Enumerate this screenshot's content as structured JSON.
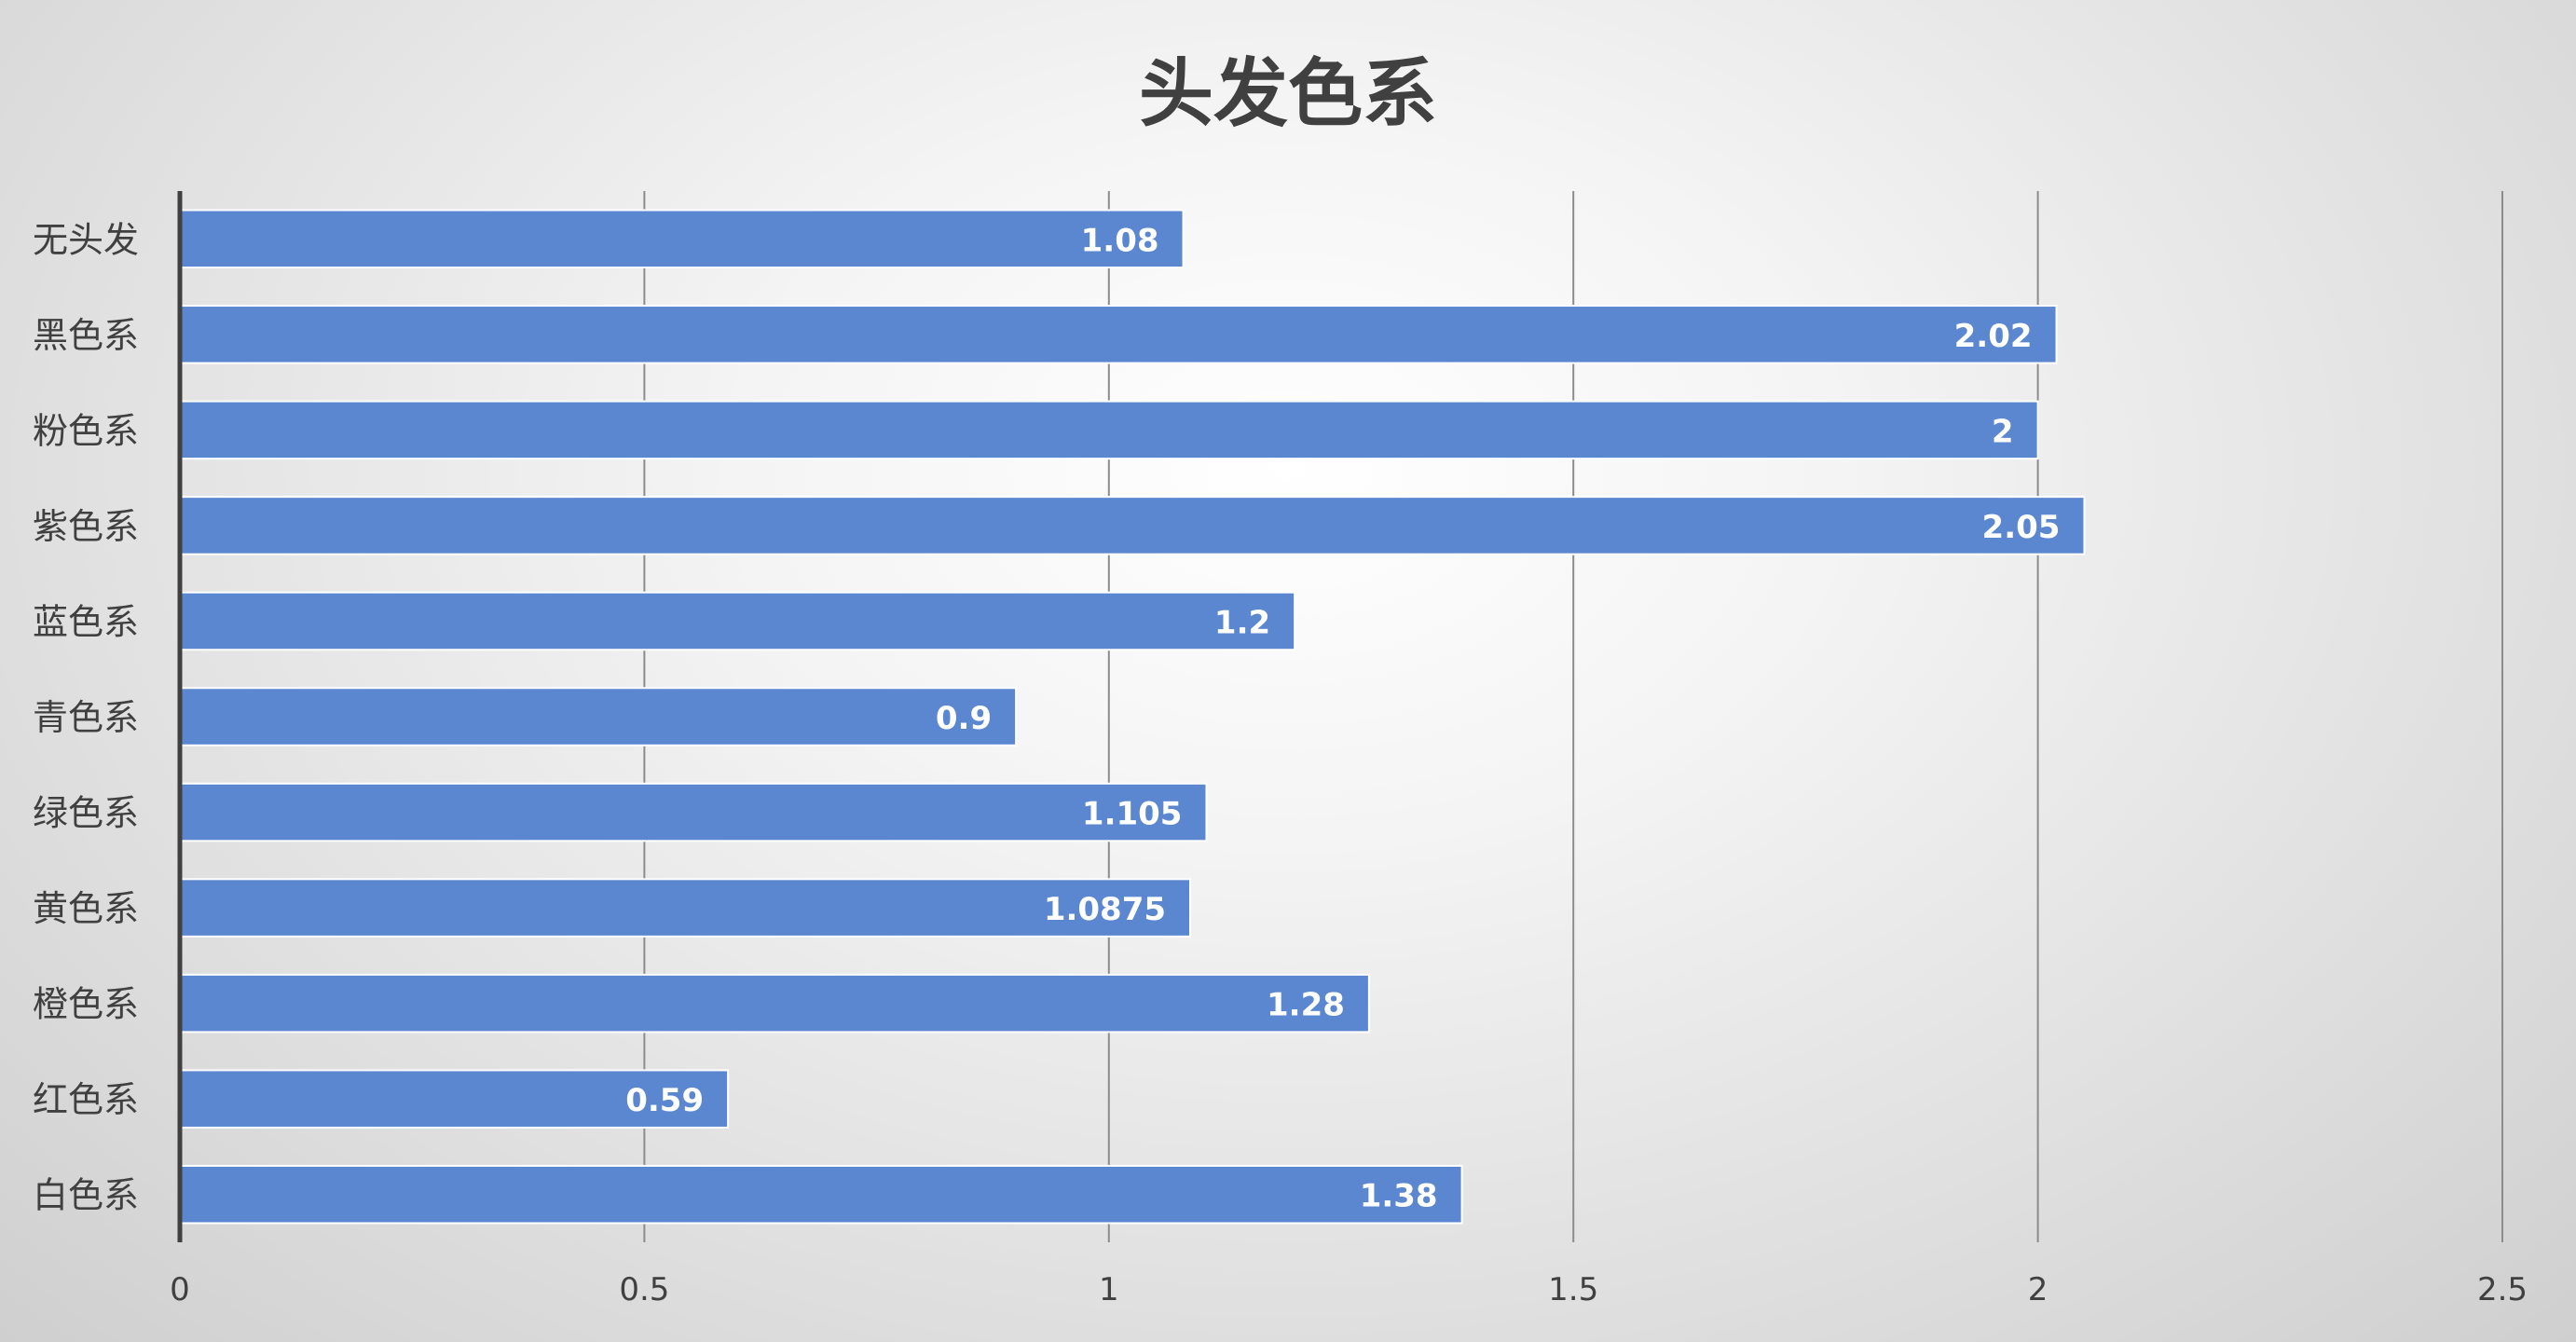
{
  "chart_data": {
    "type": "bar",
    "orientation": "horizontal",
    "title": "头发色系",
    "categories": [
      "无头发",
      "黑色系",
      "粉色系",
      "紫色系",
      "蓝色系",
      "青色系",
      "绿色系",
      "黄色系",
      "橙色系",
      "红色系",
      "白色系"
    ],
    "values": [
      1.08,
      2.02,
      2,
      2.05,
      1.2,
      0.9,
      1.105,
      1.0875,
      1.28,
      0.59,
      1.38
    ],
    "data_labels": [
      "1.08",
      "2.02",
      "2",
      "2.05",
      "1.2",
      "0.9",
      "1.105",
      "1.0875",
      "1.28",
      "0.59",
      "1.38"
    ],
    "x_ticks": [
      "0",
      "0.5",
      "1",
      "1.5",
      "2",
      "2.5"
    ],
    "xlim": [
      0,
      2.5
    ],
    "xlabel": "",
    "ylabel": "",
    "grid": true,
    "legend": "none",
    "colors": {
      "bar": "#5b87d0",
      "bar_edge": "#ffffff",
      "grid": "#8c8c8c",
      "axis": "#404040",
      "label": "#404040",
      "data_label": "#ffffff"
    }
  }
}
